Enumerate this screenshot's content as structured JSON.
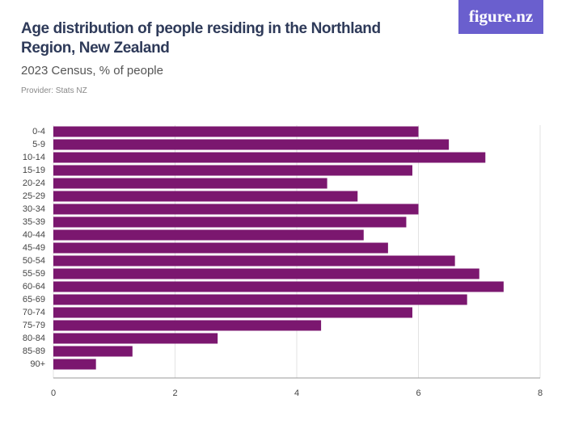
{
  "logo": "figure.nz",
  "chart_data": {
    "type": "barh",
    "title": "Age distribution of people residing in the Northland Region, New Zealand",
    "subtitle": "2023 Census, % of people",
    "provider": "Provider: Stats NZ",
    "categories": [
      "0-4",
      "5-9",
      "10-14",
      "15-19",
      "20-24",
      "25-29",
      "30-34",
      "35-39",
      "40-44",
      "45-49",
      "50-54",
      "55-59",
      "60-64",
      "65-69",
      "70-74",
      "75-79",
      "80-84",
      "85-89",
      "90+"
    ],
    "values": [
      6.0,
      6.5,
      7.1,
      5.9,
      4.5,
      5.0,
      6.0,
      5.8,
      5.1,
      5.5,
      6.6,
      7.0,
      7.4,
      6.8,
      5.9,
      4.4,
      2.7,
      1.3,
      0.7
    ],
    "color": "#7b176f",
    "xlim": [
      0,
      8
    ],
    "xticks": [
      0,
      2,
      4,
      6,
      8
    ],
    "grid": true
  }
}
